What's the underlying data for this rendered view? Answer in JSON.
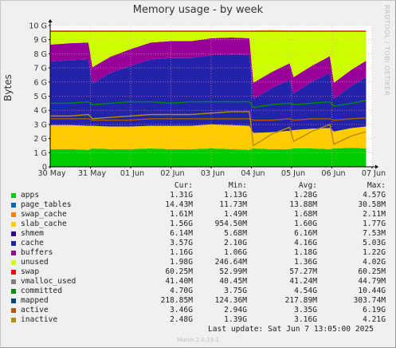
{
  "title": "Memory usage - by week",
  "ylabel": "Bytes",
  "watermark": "RRDTOOL / TOBI OETIKER",
  "version": "Munin 2.0.33-1",
  "last_update": "Last update:  Sat Jun  7 13:05:00 2025",
  "legend_headers": {
    "cur": "Cur:",
    "min": "Min:",
    "avg": "Avg:",
    "max": "Max:"
  },
  "legend": [
    {
      "name": "apps",
      "color": "#00cc00",
      "cur": "1.31G",
      "min": "1.13G",
      "avg": "1.28G",
      "max": "4.57G"
    },
    {
      "name": "page_tables",
      "color": "#0066b3",
      "cur": "14.43M",
      "min": "11.73M",
      "avg": "13.88M",
      "max": "30.58M"
    },
    {
      "name": "swap_cache",
      "color": "#ff8000",
      "cur": "1.61M",
      "min": "1.49M",
      "avg": "1.68M",
      "max": "2.11M"
    },
    {
      "name": "slab_cache",
      "color": "#ffcc00",
      "cur": "1.56G",
      "min": "954.50M",
      "avg": "1.60G",
      "max": "1.77G"
    },
    {
      "name": "shmem",
      "color": "#330099",
      "cur": "6.14M",
      "min": "5.68M",
      "avg": "6.16M",
      "max": "7.53M"
    },
    {
      "name": "cache",
      "color": "#2222aa",
      "cur": "3.57G",
      "min": "2.10G",
      "avg": "4.16G",
      "max": "5.03G"
    },
    {
      "name": "buffers",
      "color": "#990099",
      "cur": "1.16G",
      "min": "1.06G",
      "avg": "1.18G",
      "max": "1.22G"
    },
    {
      "name": "unused",
      "color": "#ccff00",
      "cur": "1.98G",
      "min": "246.64M",
      "avg": "1.36G",
      "max": "4.02G"
    },
    {
      "name": "swap",
      "color": "#ff0000",
      "cur": "60.25M",
      "min": "52.99M",
      "avg": "57.27M",
      "max": "60.25M"
    },
    {
      "name": "vmalloc_used",
      "color": "#808080",
      "cur": "41.40M",
      "min": "40.45M",
      "avg": "41.24M",
      "max": "44.79M"
    },
    {
      "name": "committed",
      "color": "#008f00",
      "cur": "4.70G",
      "min": "3.75G",
      "avg": "4.54G",
      "max": "10.44G"
    },
    {
      "name": "mapped",
      "color": "#00487d",
      "cur": "218.85M",
      "min": "124.36M",
      "avg": "217.89M",
      "max": "303.74M"
    },
    {
      "name": "active",
      "color": "#b35a00",
      "cur": "3.46G",
      "min": "2.94G",
      "avg": "3.35G",
      "max": "6.19G"
    },
    {
      "name": "inactive",
      "color": "#b38f00",
      "cur": "2.48G",
      "min": "1.39G",
      "avg": "3.16G",
      "max": "4.21G"
    }
  ],
  "chart_data": {
    "type": "area",
    "title": "Memory usage - by week",
    "ylabel": "Bytes",
    "xlabel": "",
    "ylim": [
      0,
      10
    ],
    "y_unit": "G",
    "y_ticks": [
      "0",
      "1 G",
      "2 G",
      "3 G",
      "4 G",
      "5 G",
      "6 G",
      "7 G",
      "8 G",
      "9 G",
      "10 G"
    ],
    "x_ticks": [
      "30 May",
      "31 May",
      "01 Jun",
      "02 Jun",
      "03 Jun",
      "04 Jun",
      "05 Jun",
      "06 Jun",
      "07 Jun"
    ],
    "x": [
      0,
      0.5,
      0.95,
      1.05,
      1.5,
      2,
      2.5,
      3,
      3.5,
      4,
      4.5,
      4.95,
      5.05,
      5.5,
      5.95,
      6.05,
      6.5,
      6.95,
      7.05,
      7.5,
      7.85
    ],
    "stacked_series": [
      {
        "name": "apps",
        "color": "#00cc00",
        "values": [
          1.25,
          1.25,
          1.2,
          1.3,
          1.25,
          1.25,
          1.3,
          1.25,
          1.25,
          1.3,
          1.25,
          1.2,
          1.3,
          1.25,
          1.25,
          1.3,
          1.3,
          1.25,
          1.3,
          1.35,
          1.3
        ]
      },
      {
        "name": "slab_cache",
        "color": "#ffcc00",
        "values": [
          1.7,
          1.7,
          1.7,
          1.6,
          1.6,
          1.6,
          1.6,
          1.65,
          1.65,
          1.7,
          1.7,
          1.7,
          1.1,
          1.2,
          1.3,
          1.3,
          1.4,
          1.5,
          1.2,
          1.4,
          1.55
        ]
      },
      {
        "name": "cache",
        "color": "#2222aa",
        "values": [
          4.5,
          4.6,
          4.7,
          3.0,
          3.8,
          4.3,
          4.7,
          4.8,
          4.8,
          4.9,
          5.0,
          5.0,
          2.4,
          3.1,
          3.6,
          2.6,
          3.3,
          3.9,
          2.3,
          3.0,
          3.5
        ]
      },
      {
        "name": "buffers",
        "color": "#990099",
        "values": [
          1.2,
          1.2,
          1.2,
          1.15,
          1.15,
          1.18,
          1.2,
          1.2,
          1.2,
          1.2,
          1.2,
          1.2,
          1.15,
          1.15,
          1.18,
          1.15,
          1.15,
          1.18,
          1.15,
          1.15,
          1.16
        ]
      },
      {
        "name": "unused",
        "color": "#ccff00",
        "values": [
          1.0,
          0.9,
          0.8,
          2.6,
          1.8,
          1.3,
          0.8,
          0.7,
          0.7,
          0.5,
          0.45,
          0.5,
          3.7,
          3.0,
          2.3,
          3.3,
          2.5,
          1.8,
          3.7,
          2.7,
          2.1
        ]
      }
    ],
    "line_series": [
      {
        "name": "swap",
        "color": "#ff0000",
        "values": [
          9.6,
          9.6,
          9.6,
          9.6,
          9.6,
          9.6,
          9.6,
          9.6,
          9.6,
          9.6,
          9.6,
          9.6,
          9.6,
          9.6,
          9.6,
          9.6,
          9.6,
          9.6,
          9.6,
          9.6,
          9.6
        ]
      },
      {
        "name": "committed",
        "color": "#008f00",
        "values": [
          4.5,
          4.5,
          4.6,
          4.4,
          4.5,
          4.6,
          4.6,
          4.5,
          4.6,
          4.6,
          4.6,
          4.6,
          4.2,
          4.4,
          4.5,
          4.4,
          4.5,
          4.6,
          4.3,
          4.5,
          4.7
        ]
      },
      {
        "name": "active",
        "color": "#b35a00",
        "values": [
          3.4,
          3.4,
          3.4,
          3.3,
          3.3,
          3.3,
          3.4,
          3.4,
          3.4,
          3.4,
          3.4,
          3.4,
          3.3,
          3.3,
          3.4,
          3.3,
          3.4,
          3.4,
          3.3,
          3.4,
          3.46
        ]
      },
      {
        "name": "inactive",
        "color": "#b38f00",
        "values": [
          3.6,
          3.6,
          3.7,
          3.4,
          3.5,
          3.6,
          3.7,
          3.7,
          3.7,
          3.8,
          3.9,
          3.9,
          1.5,
          2.3,
          2.8,
          1.8,
          2.5,
          3.0,
          1.6,
          2.2,
          2.48
        ]
      }
    ]
  }
}
